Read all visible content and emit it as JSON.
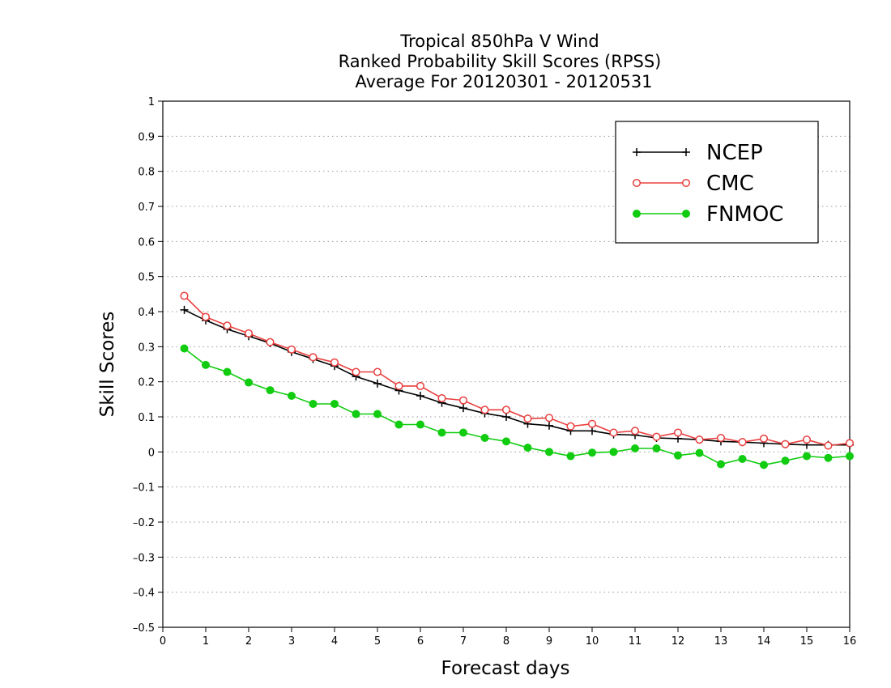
{
  "chart_data": {
    "type": "line",
    "title": [
      "Tropical 850hPa V Wind",
      "Ranked Probability Skill Scores (RPSS)",
      "Average For 20120301 - 20120531"
    ],
    "xlabel": "Forecast days",
    "ylabel": "Skill Scores",
    "xlim": [
      0,
      16
    ],
    "ylim": [
      -0.5,
      1
    ],
    "xticks": [
      0,
      1,
      2,
      3,
      4,
      5,
      6,
      7,
      8,
      9,
      10,
      11,
      12,
      13,
      14,
      15,
      16
    ],
    "yticks": [
      -0.5,
      -0.4,
      -0.3,
      -0.2,
      -0.1,
      0,
      0.1,
      0.2,
      0.3,
      0.4,
      0.5,
      0.6,
      0.7,
      0.8,
      0.9,
      1
    ],
    "ytick_labels": [
      "–0.5",
      "–0.4",
      "–0.3",
      "–0.2",
      "–0.1",
      "0",
      "0.1",
      "0.2",
      "0.3",
      "0.4",
      "0.5",
      "0.6",
      "0.7",
      "0.8",
      "0.9",
      "1"
    ],
    "grid": "horizontal-dotted",
    "legend_position": "top-right",
    "x": [
      0.5,
      1,
      1.5,
      2,
      2.5,
      3,
      3.5,
      4,
      4.5,
      5,
      5.5,
      6,
      6.5,
      7,
      7.5,
      8,
      8.5,
      9,
      9.5,
      10,
      10.5,
      11,
      11.5,
      12,
      12.5,
      13,
      13.5,
      14,
      14.5,
      15,
      15.5,
      16
    ],
    "series": [
      {
        "name": "NCEP",
        "color": "#000000",
        "marker": "plus",
        "values": [
          0.405,
          0.375,
          0.35,
          0.33,
          0.31,
          0.285,
          0.265,
          0.245,
          0.215,
          0.195,
          0.175,
          0.16,
          0.14,
          0.125,
          0.11,
          0.1,
          0.08,
          0.075,
          0.06,
          0.06,
          0.05,
          0.048,
          0.04,
          0.038,
          0.035,
          0.03,
          0.028,
          0.025,
          0.022,
          0.02,
          0.02,
          0.02
        ]
      },
      {
        "name": "CMC",
        "color": "#e8403f",
        "marker": "open-circle",
        "values": [
          0.445,
          0.385,
          0.36,
          0.338,
          0.313,
          0.292,
          0.27,
          0.255,
          0.228,
          0.228,
          0.188,
          0.188,
          0.153,
          0.147,
          0.12,
          0.12,
          0.095,
          0.097,
          0.073,
          0.08,
          0.055,
          0.06,
          0.043,
          0.055,
          0.035,
          0.04,
          0.028,
          0.038,
          0.022,
          0.035,
          0.018,
          0.025
        ]
      },
      {
        "name": "FNMOC",
        "color": "#11cc11",
        "marker": "filled-circle",
        "values": [
          0.295,
          0.248,
          0.228,
          0.198,
          0.176,
          0.16,
          0.137,
          0.137,
          0.108,
          0.108,
          0.078,
          0.078,
          0.055,
          0.055,
          0.04,
          0.03,
          0.012,
          0.0,
          -0.012,
          -0.002,
          0.0,
          0.01,
          0.01,
          -0.01,
          -0.003,
          -0.035,
          -0.02,
          -0.037,
          -0.025,
          -0.012,
          -0.017,
          -0.012
        ]
      }
    ]
  }
}
